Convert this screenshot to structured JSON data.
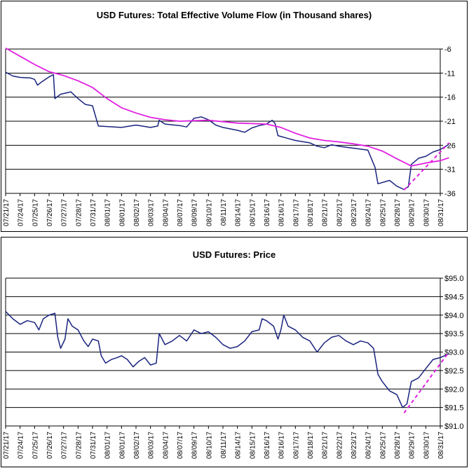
{
  "chart_data": [
    {
      "type": "line",
      "title": "USD Futures: Total Effective Volume Flow (in Thousand shares)",
      "xlabel": "",
      "ylabel": "",
      "y_axis_side": "right",
      "ylim": [
        -36,
        -6
      ],
      "yticks": [
        "-6",
        "-11",
        "-16",
        "-21",
        "-26",
        "-31",
        "-36"
      ],
      "x_ticks": [
        "07/21/17",
        "07/24/17",
        "07/25/17",
        "07/26/17",
        "07/27/17",
        "07/28/17",
        "07/31/17",
        "08/01/17",
        "08/01/17",
        "08/02/17",
        "08/03/17",
        "08/04/17",
        "08/07/17",
        "08/09/17",
        "08/10/17",
        "08/11/17",
        "08/14/17",
        "08/15/17",
        "08/16/17",
        "08/16/17",
        "08/17/17",
        "08/18/17",
        "08/21/17",
        "08/22/17",
        "08/23/17",
        "08/24/17",
        "08/25/17",
        "08/28/17",
        "08/29/17",
        "08/30/17",
        "08/31/17"
      ],
      "grid": "horizontal",
      "series": [
        {
          "color": "#1a237e",
          "points": [
            [
              0,
              -10.8
            ],
            [
              0.5,
              -11.6
            ],
            [
              1.0,
              -11.9
            ],
            [
              1.7,
              -12.0
            ],
            [
              2.0,
              -12.3
            ],
            [
              2.2,
              -13.5
            ],
            [
              2.5,
              -12.8
            ],
            [
              3.0,
              -11.8
            ],
            [
              3.3,
              -11.3
            ],
            [
              3.4,
              -16.3
            ],
            [
              3.8,
              -15.4
            ],
            [
              4.5,
              -14.9
            ],
            [
              5.0,
              -16.3
            ],
            [
              5.5,
              -17.5
            ],
            [
              6.0,
              -17.8
            ],
            [
              6.4,
              -22.0
            ],
            [
              7.0,
              -22.1
            ],
            [
              8.0,
              -22.3
            ],
            [
              9.0,
              -21.8
            ],
            [
              10.0,
              -22.3
            ],
            [
              10.5,
              -22.0
            ],
            [
              10.6,
              -20.8
            ],
            [
              11.0,
              -21.6
            ],
            [
              12.0,
              -21.9
            ],
            [
              12.5,
              -22.2
            ],
            [
              13.0,
              -20.4
            ],
            [
              13.5,
              -20.1
            ],
            [
              14.0,
              -20.7
            ],
            [
              14.5,
              -21.8
            ],
            [
              15.0,
              -22.3
            ],
            [
              16.0,
              -22.9
            ],
            [
              16.5,
              -23.3
            ],
            [
              17.0,
              -22.4
            ],
            [
              17.5,
              -21.9
            ],
            [
              18.0,
              -21.6
            ],
            [
              18.4,
              -20.8
            ],
            [
              18.6,
              -21.5
            ],
            [
              18.8,
              -24.0
            ],
            [
              19.5,
              -24.6
            ],
            [
              20.0,
              -25.0
            ],
            [
              21.0,
              -25.5
            ],
            [
              21.5,
              -26.2
            ],
            [
              22.0,
              -26.5
            ],
            [
              22.5,
              -25.9
            ],
            [
              23.0,
              -26.2
            ],
            [
              24.0,
              -26.6
            ],
            [
              25.0,
              -27.0
            ],
            [
              25.5,
              -30.6
            ],
            [
              25.7,
              -34.0
            ],
            [
              26.5,
              -33.3
            ],
            [
              27.0,
              -34.5
            ],
            [
              27.5,
              -35.2
            ],
            [
              27.8,
              -34.6
            ],
            [
              28.0,
              -30.0
            ],
            [
              28.5,
              -28.7
            ],
            [
              29.0,
              -28.3
            ],
            [
              29.5,
              -27.4
            ],
            [
              30.0,
              -26.9
            ],
            [
              30.6,
              -25.8
            ]
          ]
        },
        {
          "color": "#e020e0",
          "points": [
            [
              0,
              -5.8
            ],
            [
              1,
              -7.5
            ],
            [
              2,
              -9.2
            ],
            [
              3,
              -10.7
            ],
            [
              4,
              -11.5
            ],
            [
              5,
              -12.6
            ],
            [
              6,
              -14.0
            ],
            [
              7,
              -16.3
            ],
            [
              8,
              -18.2
            ],
            [
              9,
              -19.3
            ],
            [
              10,
              -20.2
            ],
            [
              11,
              -20.7
            ],
            [
              12,
              -21.0
            ],
            [
              13,
              -20.9
            ],
            [
              14,
              -20.8
            ],
            [
              15,
              -21.1
            ],
            [
              16,
              -21.4
            ],
            [
              17,
              -21.5
            ],
            [
              18,
              -21.6
            ],
            [
              19,
              -22.3
            ],
            [
              20,
              -23.5
            ],
            [
              21,
              -24.5
            ],
            [
              22,
              -25.0
            ],
            [
              23,
              -25.3
            ],
            [
              24,
              -25.7
            ],
            [
              25,
              -26.2
            ],
            [
              26,
              -27.2
            ],
            [
              27,
              -28.8
            ],
            [
              28,
              -30.3
            ],
            [
              29,
              -29.7
            ],
            [
              30,
              -29.2
            ],
            [
              30.6,
              -28.6
            ]
          ]
        }
      ],
      "annotation": {
        "type": "dashed-trend",
        "color": "#e020e0",
        "from": [
          27.5,
          -35.3
        ],
        "to": [
          30.6,
          -25.5
        ]
      }
    },
    {
      "type": "line",
      "title": "USD Futures: Price",
      "xlabel": "",
      "ylabel": "",
      "y_axis_side": "right",
      "ylim": [
        91.0,
        95.0
      ],
      "yticks": [
        "$95.0",
        "$94.5",
        "$94.0",
        "$93.5",
        "$93.0",
        "$92.5",
        "$92.0",
        "$91.5",
        "$91.0"
      ],
      "x_ticks": [
        "07/21/17",
        "07/24/17",
        "07/25/17",
        "07/26/17",
        "07/27/17",
        "07/28/17",
        "07/31/17",
        "08/01/17",
        "08/01/17",
        "08/02/17",
        "08/03/17",
        "08/04/17",
        "08/07/17",
        "08/09/17",
        "08/10/17",
        "08/11/17",
        "08/14/17",
        "08/15/17",
        "08/16/17",
        "08/16/17",
        "08/17/17",
        "08/18/17",
        "08/21/17",
        "08/22/17",
        "08/23/17",
        "08/24/17",
        "08/25/17",
        "08/28/17",
        "08/29/17",
        "08/30/17",
        "08/31/17"
      ],
      "grid": "horizontal",
      "series": [
        {
          "color": "#1a237e",
          "points": [
            [
              0,
              94.1
            ],
            [
              0.5,
              93.9
            ],
            [
              1.0,
              93.75
            ],
            [
              1.5,
              93.85
            ],
            [
              2.0,
              93.8
            ],
            [
              2.3,
              93.6
            ],
            [
              2.6,
              93.9
            ],
            [
              3.0,
              94.0
            ],
            [
              3.4,
              94.05
            ],
            [
              3.6,
              93.4
            ],
            [
              3.8,
              93.1
            ],
            [
              4.1,
              93.35
            ],
            [
              4.3,
              93.9
            ],
            [
              4.6,
              93.7
            ],
            [
              5.0,
              93.6
            ],
            [
              5.4,
              93.3
            ],
            [
              5.7,
              93.15
            ],
            [
              6.0,
              93.35
            ],
            [
              6.4,
              93.3
            ],
            [
              6.6,
              92.9
            ],
            [
              6.9,
              92.7
            ],
            [
              7.3,
              92.8
            ],
            [
              7.7,
              92.85
            ],
            [
              8.0,
              92.9
            ],
            [
              8.4,
              92.8
            ],
            [
              8.8,
              92.6
            ],
            [
              9.2,
              92.75
            ],
            [
              9.6,
              92.85
            ],
            [
              10.0,
              92.65
            ],
            [
              10.4,
              92.7
            ],
            [
              10.6,
              93.5
            ],
            [
              11.0,
              93.2
            ],
            [
              11.5,
              93.3
            ],
            [
              12.0,
              93.45
            ],
            [
              12.5,
              93.3
            ],
            [
              13.0,
              93.6
            ],
            [
              13.5,
              93.5
            ],
            [
              14.0,
              93.55
            ],
            [
              14.5,
              93.4
            ],
            [
              15.0,
              93.2
            ],
            [
              15.5,
              93.1
            ],
            [
              16.0,
              93.15
            ],
            [
              16.5,
              93.3
            ],
            [
              17.0,
              93.55
            ],
            [
              17.5,
              93.6
            ],
            [
              17.7,
              93.9
            ],
            [
              18.0,
              93.85
            ],
            [
              18.5,
              93.7
            ],
            [
              18.8,
              93.35
            ],
            [
              19.0,
              93.6
            ],
            [
              19.2,
              94.0
            ],
            [
              19.5,
              93.7
            ],
            [
              20.0,
              93.6
            ],
            [
              20.5,
              93.4
            ],
            [
              21.0,
              93.3
            ],
            [
              21.5,
              93.0
            ],
            [
              22.0,
              93.25
            ],
            [
              22.5,
              93.4
            ],
            [
              23.0,
              93.45
            ],
            [
              23.5,
              93.3
            ],
            [
              24.0,
              93.2
            ],
            [
              24.5,
              93.3
            ],
            [
              25.0,
              93.25
            ],
            [
              25.4,
              93.1
            ],
            [
              25.7,
              92.4
            ],
            [
              26.0,
              92.2
            ],
            [
              26.5,
              91.95
            ],
            [
              27.0,
              91.85
            ],
            [
              27.4,
              91.5
            ],
            [
              27.7,
              91.6
            ],
            [
              28.0,
              92.2
            ],
            [
              28.5,
              92.3
            ],
            [
              29.0,
              92.55
            ],
            [
              29.5,
              92.8
            ],
            [
              30.0,
              92.85
            ],
            [
              30.6,
              92.95
            ]
          ]
        }
      ],
      "annotation": {
        "type": "dashed-trend",
        "color": "#e020e0",
        "from": [
          27.5,
          91.35
        ],
        "to": [
          30.6,
          93.0
        ]
      }
    }
  ]
}
